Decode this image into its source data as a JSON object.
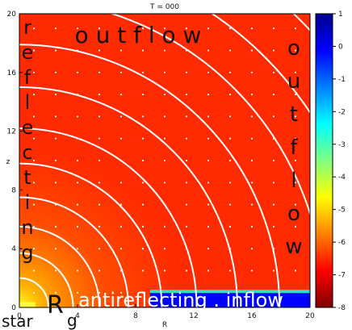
{
  "chart_data": {
    "type": "heatmap",
    "title": "T = 000",
    "xlabel": "R",
    "ylabel": "z",
    "xlim": [
      0,
      20
    ],
    "ylim": [
      0,
      20
    ],
    "x_ticks": [
      "0",
      "4",
      "8",
      "12",
      "16",
      "20"
    ],
    "y_ticks": [
      "0",
      "4",
      "8",
      "12",
      "16",
      "20"
    ],
    "colorbar": {
      "range": [
        -8,
        1
      ],
      "ticks": [
        "1",
        "0",
        "-1",
        "-2",
        "-3",
        "-4",
        "-5",
        "-6",
        "-7",
        "-8"
      ],
      "colors": [
        "#7f0000",
        "#ff0000",
        "#ff8000",
        "#ffff00",
        "#80ff80",
        "#00ffff",
        "#0080ff",
        "#0000ff",
        "#00008f"
      ]
    },
    "field": {
      "description_level_far": -6.9,
      "level_center": -4.8,
      "falloff_radius": 6
    },
    "contour_radii": [
      2,
      3.7,
      5.5,
      7.5,
      9.8,
      12.2,
      15.0,
      17.9,
      21.0,
      24.0,
      27.5
    ],
    "inflow_region": {
      "r_from": 9,
      "r_to": 20,
      "z_from": 0,
      "z_to": 1.2,
      "level": 0.2
    },
    "annotations": {
      "top": "o u t f l o w",
      "left": [
        "r",
        "e",
        "f",
        "l",
        "e",
        "c",
        "t",
        "i",
        "n",
        "g"
      ],
      "right": [
        "o",
        "u",
        "t",
        "f",
        "l",
        "o",
        "w"
      ],
      "bottom_white": "antireflecting . inflow",
      "star": "star",
      "r_big": "R",
      "r_sub": "g"
    }
  }
}
